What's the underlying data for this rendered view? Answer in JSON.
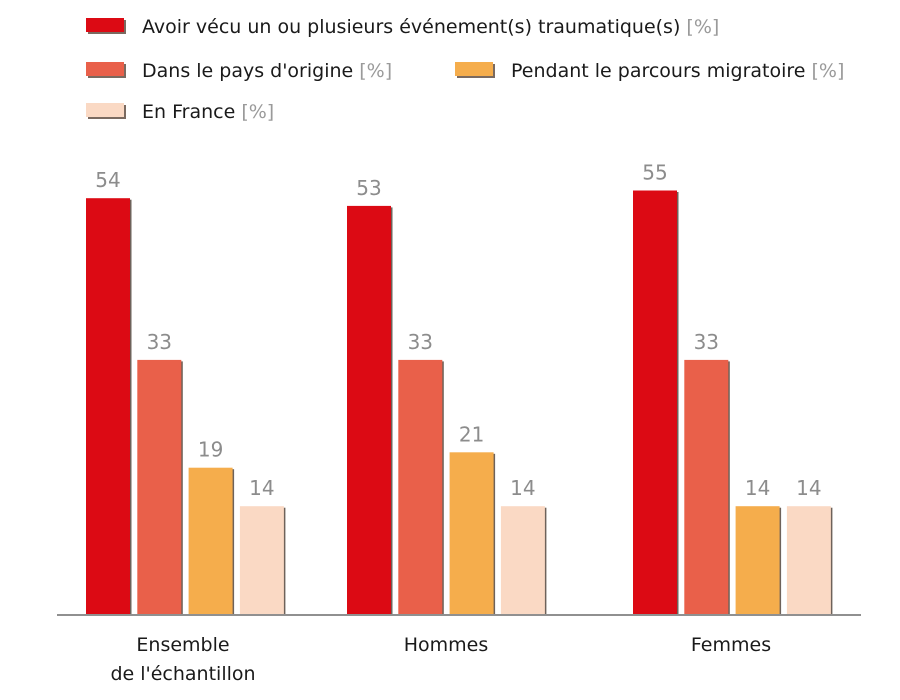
{
  "chart_data": {
    "type": "bar",
    "categories": [
      [
        "Ensemble",
        "de l'échantillon"
      ],
      [
        "Hommes"
      ],
      [
        "Femmes"
      ]
    ],
    "series": [
      {
        "name": "Avoir vécu un ou plusieurs événement(s) traumatique(s)",
        "unit": "[%]",
        "color": "#dc0a14",
        "values": [
          54,
          53,
          55
        ]
      },
      {
        "name": "Dans le pays d'origine",
        "unit": "[%]",
        "color": "#e9604a",
        "values": [
          33,
          33,
          33
        ]
      },
      {
        "name": "Pendant le parcours migratoire",
        "unit": "[%]",
        "color": "#f5ad4c",
        "values": [
          19,
          21,
          14
        ]
      },
      {
        "name": "En France",
        "unit": "[%]",
        "color": "#fad9c4",
        "values": [
          14,
          14,
          14
        ]
      }
    ],
    "ylim": [
      0,
      60
    ],
    "grid": false,
    "legend_position": "top-left"
  }
}
